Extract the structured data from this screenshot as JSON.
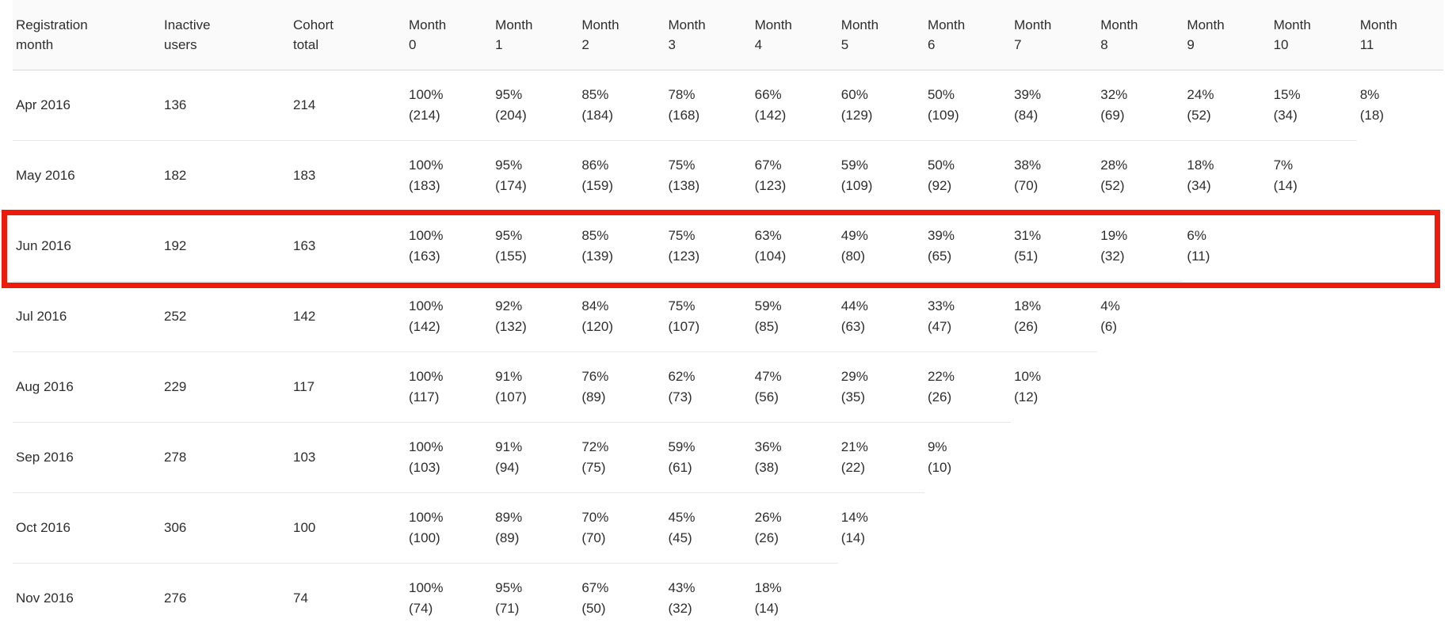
{
  "colors": {
    "highlight_border": "#ec1c0d",
    "header_background": "#fafafa",
    "header_divider": "#d8d8d8",
    "row_divider": "#e8e8e8",
    "text": "#2e2e2e"
  },
  "chart_data": {
    "type": "table",
    "columns": [
      "Registration month",
      "Inactive users",
      "Cohort total",
      "Month 0",
      "Month 1",
      "Month 2",
      "Month 3",
      "Month 4",
      "Month 5",
      "Month 6",
      "Month 7",
      "Month 8",
      "Month 9",
      "Month 10",
      "Month 11"
    ],
    "annotation": {
      "highlighted_row": "Jun 2016",
      "color": "#ec1c0d"
    },
    "rows": [
      {
        "registration_month": "Apr 2016",
        "inactive_users": "136",
        "cohort_total": "214",
        "months": [
          {
            "percent": "100%",
            "count": "(214)"
          },
          {
            "percent": "95%",
            "count": "(204)"
          },
          {
            "percent": "85%",
            "count": "(184)"
          },
          {
            "percent": "78%",
            "count": "(168)"
          },
          {
            "percent": "66%",
            "count": "(142)"
          },
          {
            "percent": "60%",
            "count": "(129)"
          },
          {
            "percent": "50%",
            "count": "(109)"
          },
          {
            "percent": "39%",
            "count": "(84)"
          },
          {
            "percent": "32%",
            "count": "(69)"
          },
          {
            "percent": "24%",
            "count": "(52)"
          },
          {
            "percent": "15%",
            "count": "(34)"
          },
          {
            "percent": "8%",
            "count": "(18)"
          }
        ]
      },
      {
        "registration_month": "May 2016",
        "inactive_users": "182",
        "cohort_total": "183",
        "months": [
          {
            "percent": "100%",
            "count": "(183)"
          },
          {
            "percent": "95%",
            "count": "(174)"
          },
          {
            "percent": "86%",
            "count": "(159)"
          },
          {
            "percent": "75%",
            "count": "(138)"
          },
          {
            "percent": "67%",
            "count": "(123)"
          },
          {
            "percent": "59%",
            "count": "(109)"
          },
          {
            "percent": "50%",
            "count": "(92)"
          },
          {
            "percent": "38%",
            "count": "(70)"
          },
          {
            "percent": "28%",
            "count": "(52)"
          },
          {
            "percent": "18%",
            "count": "(34)"
          },
          {
            "percent": "7%",
            "count": "(14)"
          }
        ]
      },
      {
        "registration_month": "Jun 2016",
        "inactive_users": "192",
        "cohort_total": "163",
        "months": [
          {
            "percent": "100%",
            "count": "(163)"
          },
          {
            "percent": "95%",
            "count": "(155)"
          },
          {
            "percent": "85%",
            "count": "(139)"
          },
          {
            "percent": "75%",
            "count": "(123)"
          },
          {
            "percent": "63%",
            "count": "(104)"
          },
          {
            "percent": "49%",
            "count": "(80)"
          },
          {
            "percent": "39%",
            "count": "(65)"
          },
          {
            "percent": "31%",
            "count": "(51)"
          },
          {
            "percent": "19%",
            "count": "(32)"
          },
          {
            "percent": "6%",
            "count": "(11)"
          }
        ]
      },
      {
        "registration_month": "Jul 2016",
        "inactive_users": "252",
        "cohort_total": "142",
        "months": [
          {
            "percent": "100%",
            "count": "(142)"
          },
          {
            "percent": "92%",
            "count": "(132)"
          },
          {
            "percent": "84%",
            "count": "(120)"
          },
          {
            "percent": "75%",
            "count": "(107)"
          },
          {
            "percent": "59%",
            "count": "(85)"
          },
          {
            "percent": "44%",
            "count": "(63)"
          },
          {
            "percent": "33%",
            "count": "(47)"
          },
          {
            "percent": "18%",
            "count": "(26)"
          },
          {
            "percent": "4%",
            "count": "(6)"
          }
        ]
      },
      {
        "registration_month": "Aug 2016",
        "inactive_users": "229",
        "cohort_total": "117",
        "months": [
          {
            "percent": "100%",
            "count": "(117)"
          },
          {
            "percent": "91%",
            "count": "(107)"
          },
          {
            "percent": "76%",
            "count": "(89)"
          },
          {
            "percent": "62%",
            "count": "(73)"
          },
          {
            "percent": "47%",
            "count": "(56)"
          },
          {
            "percent": "29%",
            "count": "(35)"
          },
          {
            "percent": "22%",
            "count": "(26)"
          },
          {
            "percent": "10%",
            "count": "(12)"
          }
        ]
      },
      {
        "registration_month": "Sep 2016",
        "inactive_users": "278",
        "cohort_total": "103",
        "months": [
          {
            "percent": "100%",
            "count": "(103)"
          },
          {
            "percent": "91%",
            "count": "(94)"
          },
          {
            "percent": "72%",
            "count": "(75)"
          },
          {
            "percent": "59%",
            "count": "(61)"
          },
          {
            "percent": "36%",
            "count": "(38)"
          },
          {
            "percent": "21%",
            "count": "(22)"
          },
          {
            "percent": "9%",
            "count": "(10)"
          }
        ]
      },
      {
        "registration_month": "Oct 2016",
        "inactive_users": "306",
        "cohort_total": "100",
        "months": [
          {
            "percent": "100%",
            "count": "(100)"
          },
          {
            "percent": "89%",
            "count": "(89)"
          },
          {
            "percent": "70%",
            "count": "(70)"
          },
          {
            "percent": "45%",
            "count": "(45)"
          },
          {
            "percent": "26%",
            "count": "(26)"
          },
          {
            "percent": "14%",
            "count": "(14)"
          }
        ]
      },
      {
        "registration_month": "Nov 2016",
        "inactive_users": "276",
        "cohort_total": "74",
        "months": [
          {
            "percent": "100%",
            "count": "(74)"
          },
          {
            "percent": "95%",
            "count": "(71)"
          },
          {
            "percent": "67%",
            "count": "(50)"
          },
          {
            "percent": "43%",
            "count": "(32)"
          },
          {
            "percent": "18%",
            "count": "(14)"
          }
        ]
      }
    ]
  }
}
